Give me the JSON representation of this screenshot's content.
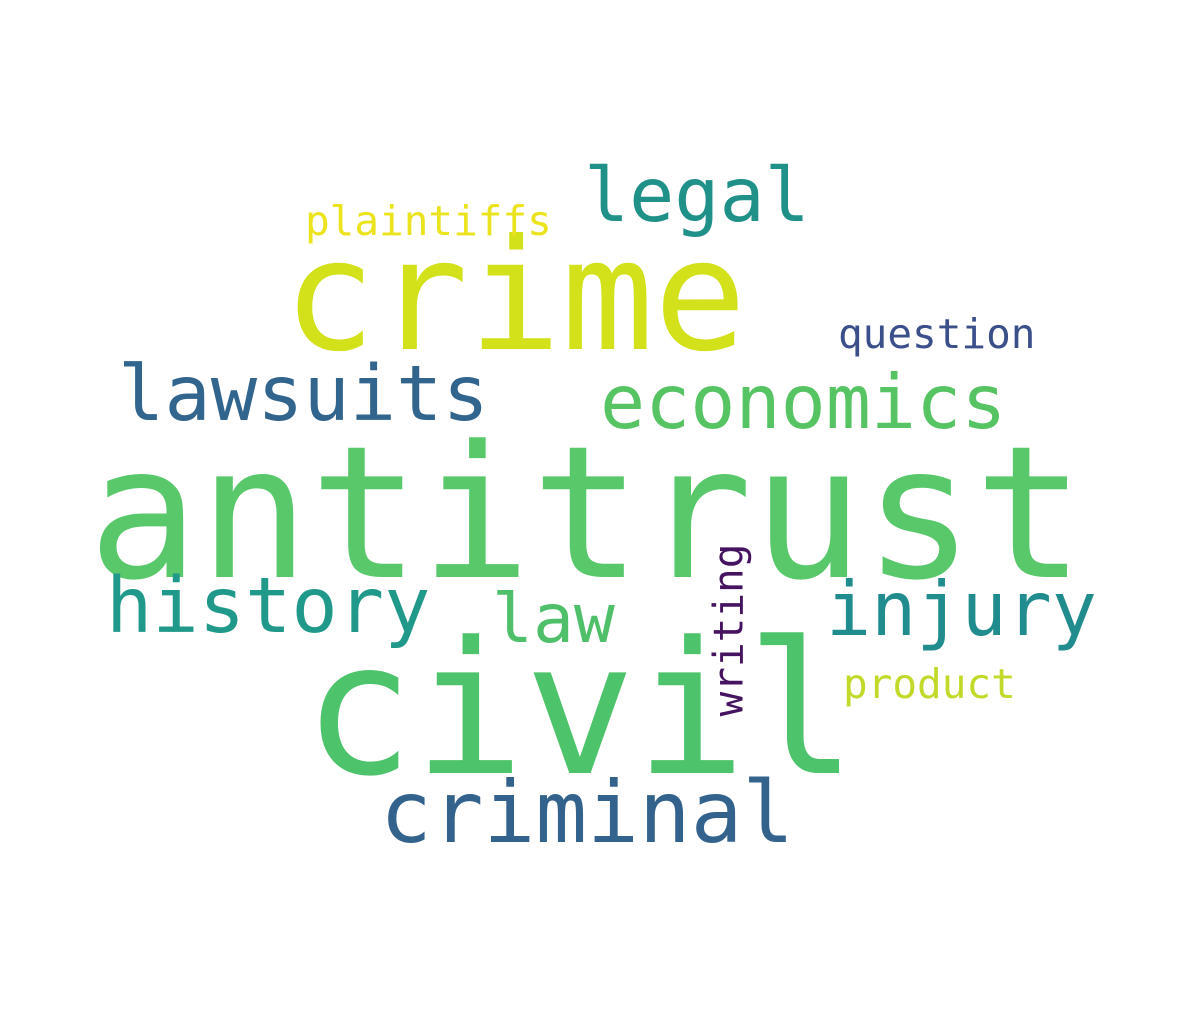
{
  "words": {
    "antitrust": {
      "text": "antitrust",
      "color": "#58c86b"
    },
    "civil": {
      "text": "civil",
      "color": "#4dc36b"
    },
    "crime": {
      "text": "crime",
      "color": "#d3e11a"
    },
    "criminal": {
      "text": "criminal",
      "color": "#33638d"
    },
    "lawsuits": {
      "text": "lawsuits",
      "color": "#32658d"
    },
    "history": {
      "text": "history",
      "color": "#21998a"
    },
    "economics": {
      "text": "economics",
      "color": "#57c464"
    },
    "injury": {
      "text": "injury",
      "color": "#218c8d"
    },
    "legal": {
      "text": "legal",
      "color": "#209189"
    },
    "law": {
      "text": "law",
      "color": "#4fc069"
    },
    "question": {
      "text": "question",
      "color": "#3b4f8a"
    },
    "plaintiffs": {
      "text": "plaintiffs",
      "color": "#eae31d"
    },
    "product": {
      "text": "product",
      "color": "#c3d92a"
    },
    "writing": {
      "text": "writing",
      "color": "#45135f"
    }
  },
  "background_color": "#ffffff"
}
